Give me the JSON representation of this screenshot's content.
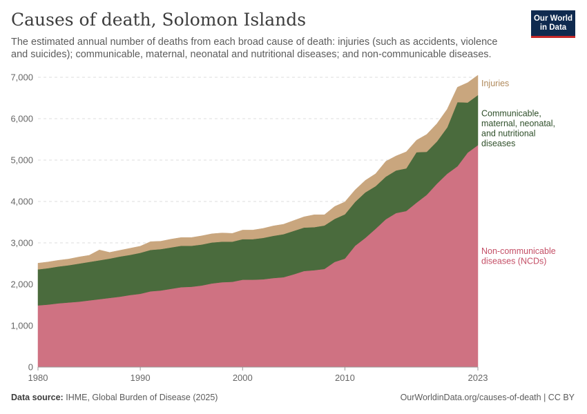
{
  "header": {
    "title": "Causes of death, Solomon Islands",
    "subtitle": "The estimated annual number of deaths from each broad cause of death: injuries (such as accidents, violence and suicides); communicable, maternal, neonatal and nutritional diseases; and non-communicable diseases."
  },
  "logo": {
    "line1": "Our World",
    "line2": "in Data"
  },
  "footer": {
    "source_label": "Data source:",
    "source_text": "IHME, Global Burden of Disease (2025)",
    "url_text": "OurWorldinData.org/causes-of-death | CC BY"
  },
  "chart_data": {
    "type": "area",
    "stacked": true,
    "title": "Causes of death, Solomon Islands",
    "x": [
      1980,
      1981,
      1982,
      1983,
      1984,
      1985,
      1986,
      1987,
      1988,
      1989,
      1990,
      1991,
      1992,
      1993,
      1994,
      1995,
      1996,
      1997,
      1998,
      1999,
      2000,
      2001,
      2002,
      2003,
      2004,
      2005,
      2006,
      2007,
      2008,
      2009,
      2010,
      2011,
      2012,
      2013,
      2014,
      2015,
      2016,
      2017,
      2018,
      2019,
      2020,
      2021,
      2022,
      2023
    ],
    "xlim": [
      1980,
      2023
    ],
    "ylim": [
      0,
      7000
    ],
    "x_ticks": [
      "1980",
      "1990",
      "2000",
      "2010",
      "2023"
    ],
    "x_tick_values": [
      1980,
      1990,
      2000,
      2010,
      2023
    ],
    "y_ticks": [
      "0",
      "1,000",
      "2,000",
      "3,000",
      "4,000",
      "5,000",
      "6,000",
      "7,000"
    ],
    "y_tick_values": [
      0,
      1000,
      2000,
      3000,
      4000,
      5000,
      6000,
      7000
    ],
    "grid": "horizontal dashed",
    "series": [
      {
        "name": "Non-communicable diseases (NCDs)",
        "label_lines": [
          "Non-communicable",
          "diseases (NCDs)"
        ],
        "color": "#cf7282",
        "values": [
          1490,
          1510,
          1540,
          1560,
          1580,
          1610,
          1640,
          1670,
          1700,
          1740,
          1770,
          1830,
          1850,
          1890,
          1930,
          1940,
          1970,
          2020,
          2050,
          2060,
          2110,
          2110,
          2120,
          2150,
          2170,
          2240,
          2320,
          2340,
          2370,
          2540,
          2620,
          2930,
          3120,
          3340,
          3570,
          3720,
          3770,
          3970,
          4160,
          4430,
          4670,
          4850,
          5180,
          5360
        ]
      },
      {
        "name": "Communicable, maternal, neonatal, and nutritional diseases",
        "label_lines": [
          "Communicable,",
          "maternal, neonatal,",
          "and nutritional",
          "diseases"
        ],
        "color": "#4a6b3d",
        "values": [
          870,
          880,
          890,
          900,
          920,
          930,
          940,
          950,
          970,
          970,
          990,
          1000,
          1000,
          1000,
          1000,
          990,
          990,
          990,
          980,
          970,
          980,
          980,
          1000,
          1020,
          1040,
          1050,
          1050,
          1040,
          1050,
          1040,
          1070,
          1060,
          1100,
          1030,
          1030,
          1030,
          1030,
          1220,
          1040,
          1020,
          1120,
          1550,
          1210,
          1210
        ]
      },
      {
        "name": "Injuries",
        "label_lines": [
          "Injuries"
        ],
        "color": "#c9a67e",
        "values": [
          150,
          150,
          150,
          150,
          160,
          160,
          250,
          150,
          150,
          160,
          160,
          200,
          190,
          200,
          200,
          200,
          210,
          210,
          210,
          200,
          220,
          220,
          230,
          240,
          240,
          250,
          260,
          300,
          260,
          300,
          300,
          290,
          290,
          300,
          370,
          350,
          400,
          290,
          420,
          430,
          440,
          360,
          480,
          480
        ]
      }
    ]
  }
}
